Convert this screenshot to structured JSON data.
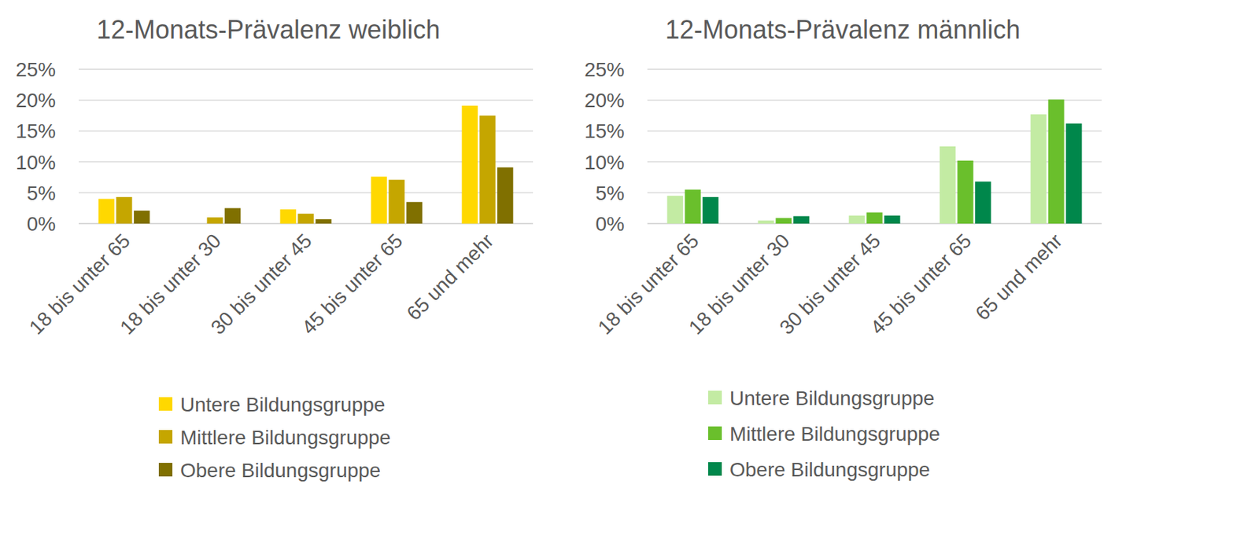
{
  "chart_data": [
    {
      "type": "bar",
      "title": "12-Monats-Prävalenz weiblich",
      "categories": [
        "18 bis unter 65",
        "18 bis unter 30",
        "30 bis unter 45",
        "45 bis unter 65",
        "65 und mehr"
      ],
      "series": [
        {
          "name": "Untere Bildungsgruppe",
          "color": "#ffd800",
          "values": [
            4.0,
            null,
            2.3,
            7.6,
            19.1
          ]
        },
        {
          "name": "Mittlere Bildungsgruppe",
          "color": "#c5a600",
          "values": [
            4.3,
            1.0,
            1.6,
            7.1,
            17.5
          ]
        },
        {
          "name": "Obere Bildungsgruppe",
          "color": "#807000",
          "values": [
            2.1,
            2.5,
            0.7,
            3.5,
            9.1
          ]
        }
      ],
      "ylim": [
        0,
        25
      ],
      "yticks": [
        {
          "value": 0,
          "label": "0%"
        },
        {
          "value": 5,
          "label": "5%"
        },
        {
          "value": 10,
          "label": "10%"
        },
        {
          "value": 15,
          "label": "15%"
        },
        {
          "value": 20,
          "label": "20%"
        },
        {
          "value": 25,
          "label": "25%"
        }
      ],
      "grid": true,
      "legend": "bottom"
    },
    {
      "type": "bar",
      "title": "12-Monats-Prävalenz männlich",
      "categories": [
        "18 bis unter 65",
        "18 bis unter 30",
        "30 bis unter 45",
        "45 bis unter 65",
        "65 und mehr"
      ],
      "series": [
        {
          "name": "Untere Bildungsgruppe",
          "color": "#c3eba3",
          "values": [
            4.5,
            0.5,
            1.3,
            12.5,
            17.7
          ]
        },
        {
          "name": "Mittlere Bildungsgruppe",
          "color": "#6abf2c",
          "values": [
            5.5,
            0.9,
            1.8,
            10.2,
            20.1
          ]
        },
        {
          "name": "Obere Bildungsgruppe",
          "color": "#00874b",
          "values": [
            4.3,
            1.2,
            1.3,
            6.8,
            16.2
          ]
        }
      ],
      "ylim": [
        0,
        25
      ],
      "yticks": [
        {
          "value": 0,
          "label": "0%"
        },
        {
          "value": 5,
          "label": "5%"
        },
        {
          "value": 10,
          "label": "10%"
        },
        {
          "value": 15,
          "label": "15%"
        },
        {
          "value": 20,
          "label": "20%"
        },
        {
          "value": 25,
          "label": "25%"
        }
      ],
      "grid": true,
      "legend": "bottom"
    }
  ]
}
